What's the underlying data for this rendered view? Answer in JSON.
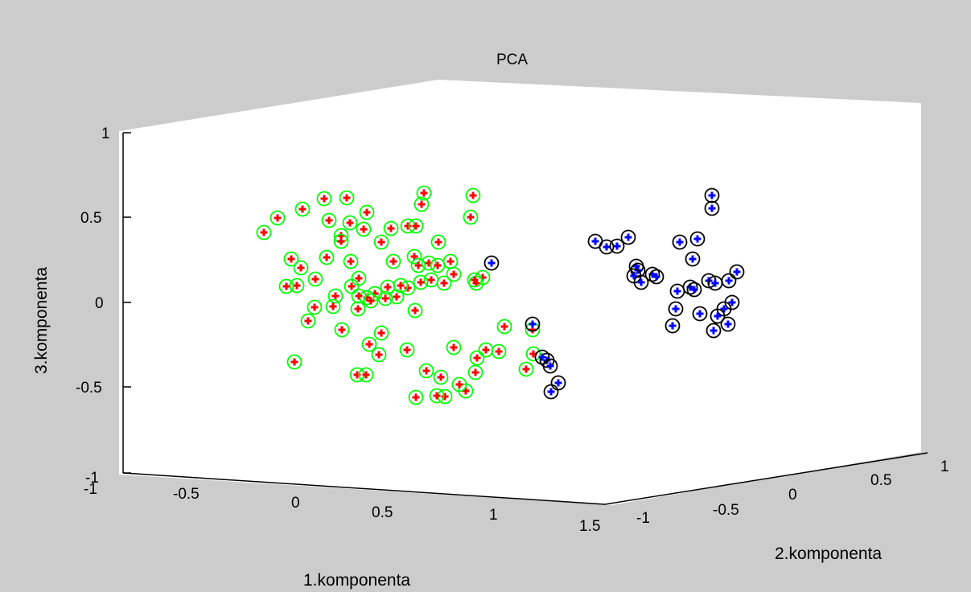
{
  "chart_data": {
    "type": "scatter",
    "projection": "3d",
    "title": "PCA",
    "xlabel": "1.komponenta",
    "ylabel": "2.komponenta",
    "zlabel": "3.komponenta",
    "z_ticks": [
      "1",
      "0.5",
      "0",
      "-0.5",
      "-1"
    ],
    "x_ticks": [
      "-1",
      "-0.5",
      "0",
      "0.5",
      "1",
      "1.5"
    ],
    "y_ticks": [
      "-1",
      "-0.5",
      "0",
      "0.5",
      "1"
    ],
    "grid": false,
    "colors": {
      "background": "#cccccc",
      "plot_background": "#ffffff",
      "cluster_1_marker": "#ff0000",
      "cluster_1_circle": "#00ff00",
      "cluster_2_marker": "#0000ff",
      "cluster_2_circle": "#000000"
    },
    "clusters": [
      {
        "marker": "+",
        "marker_color": "#ff0000",
        "circle_color": "#00ff00",
        "screen_points": [
          [
            328,
            289
          ],
          [
            345,
            271
          ],
          [
            376,
            260
          ],
          [
            403,
            247
          ],
          [
            431,
            246
          ],
          [
            409,
            274
          ],
          [
            435,
            277
          ],
          [
            456,
            264
          ],
          [
            452,
            285
          ],
          [
            424,
            293
          ],
          [
            486,
            284
          ],
          [
            507,
            281
          ],
          [
            527,
            240
          ],
          [
            524,
            254
          ],
          [
            588,
            243
          ],
          [
            585,
            270
          ],
          [
            517,
            281
          ],
          [
            545,
            301
          ],
          [
            474,
            301
          ],
          [
            424,
            300
          ],
          [
            362,
            322
          ],
          [
            374,
            333
          ],
          [
            406,
            320
          ],
          [
            392,
            347
          ],
          [
            369,
            355
          ],
          [
            356,
            356
          ],
          [
            436,
            325
          ],
          [
            446,
            346
          ],
          [
            489,
            325
          ],
          [
            515,
            319
          ],
          [
            520,
            330
          ],
          [
            533,
            327
          ],
          [
            544,
            330
          ],
          [
            560,
            325
          ],
          [
            564,
            341
          ],
          [
            552,
            352
          ],
          [
            536,
            348
          ],
          [
            523,
            351
          ],
          [
            507,
            358
          ],
          [
            498,
            355
          ],
          [
            482,
            357
          ],
          [
            466,
            365
          ],
          [
            456,
            370
          ],
          [
            446,
            368
          ],
          [
            437,
            356
          ],
          [
            417,
            368
          ],
          [
            391,
            382
          ],
          [
            414,
            381
          ],
          [
            383,
            399
          ],
          [
            425,
            410
          ],
          [
            461,
            374
          ],
          [
            479,
            371
          ],
          [
            493,
            369
          ],
          [
            516,
            386
          ],
          [
            445,
            384
          ],
          [
            366,
            450
          ],
          [
            600,
            345
          ],
          [
            627,
            406
          ],
          [
            564,
            432
          ],
          [
            604,
            435
          ],
          [
            620,
            437
          ],
          [
            593,
            445
          ],
          [
            591,
            463
          ],
          [
            506,
            435
          ],
          [
            474,
            414
          ],
          [
            459,
            428
          ],
          [
            471,
            441
          ],
          [
            444,
            466
          ],
          [
            455,
            466
          ],
          [
            530,
            461
          ],
          [
            548,
            469
          ],
          [
            579,
            486
          ],
          [
            571,
            478
          ],
          [
            553,
            493
          ],
          [
            543,
            492
          ],
          [
            517,
            494
          ],
          [
            654,
            459
          ],
          [
            663,
            440
          ],
          [
            662,
            410
          ],
          [
            592,
            352
          ],
          [
            590,
            348
          ]
        ]
      },
      {
        "marker": "+",
        "marker_color": "#0000ff",
        "circle_color": "#000000",
        "screen_points": [
          [
            885,
            243
          ],
          [
            885,
            259
          ],
          [
            740,
            300
          ],
          [
            754,
            307
          ],
          [
            767,
            306
          ],
          [
            781,
            295
          ],
          [
            791,
            331
          ],
          [
            793,
            336
          ],
          [
            788,
            343
          ],
          [
            797,
            351
          ],
          [
            811,
            341
          ],
          [
            816,
            344
          ],
          [
            845,
            301
          ],
          [
            867,
            297
          ],
          [
            861,
            322
          ],
          [
            842,
            362
          ],
          [
            858,
            357
          ],
          [
            863,
            360
          ],
          [
            881,
            349
          ],
          [
            889,
            352
          ],
          [
            906,
            349
          ],
          [
            916,
            338
          ],
          [
            840,
            384
          ],
          [
            870,
            390
          ],
          [
            836,
            405
          ],
          [
            887,
            411
          ],
          [
            905,
            403
          ],
          [
            910,
            376
          ],
          [
            900,
            384
          ],
          [
            611,
            327
          ],
          [
            680,
            448
          ],
          [
            684,
            455
          ],
          [
            694,
            476
          ],
          [
            685,
            487
          ],
          [
            662,
            403
          ],
          [
            674,
            444
          ],
          [
            892,
            393
          ]
        ]
      }
    ]
  }
}
